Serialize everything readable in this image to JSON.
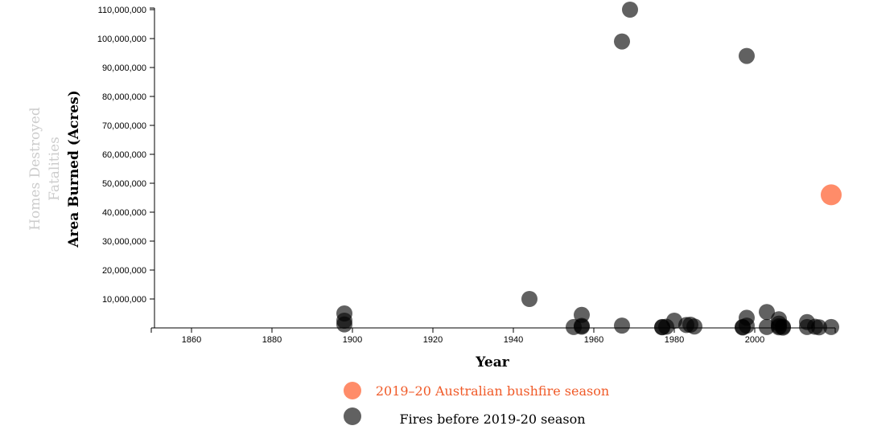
{
  "chart_data": {
    "type": "scatter",
    "xlabel": "Year",
    "ylabel": "Area Burned (Acres)",
    "alt_ylabels": [
      "Fatalities",
      "Homes Destroyed"
    ],
    "xlim": [
      1850,
      2020
    ],
    "ylim": [
      0,
      110000000
    ],
    "x_ticks": [
      1860,
      1880,
      1900,
      1920,
      1940,
      1960,
      1980,
      2000
    ],
    "y_ticks": [
      10000000,
      20000000,
      30000000,
      40000000,
      50000000,
      60000000,
      70000000,
      80000000,
      90000000,
      100000000,
      110000000
    ],
    "y_tick_labels": [
      "10,000,000",
      "20,000,000",
      "30,000,000",
      "40,000,000",
      "50,000,000",
      "60,000,000",
      "70,000,000",
      "80,000,000",
      "90,000,000",
      "100,000,000",
      "110,000,000"
    ],
    "series": [
      {
        "name": "Fires before 2019-20 season",
        "color": "#000000",
        "legend_text_color": "#000000",
        "points": [
          {
            "x": 1898,
            "y": 5000000
          },
          {
            "x": 1898,
            "y": 2500000
          },
          {
            "x": 1898,
            "y": 1200000
          },
          {
            "x": 1944,
            "y": 10000000
          },
          {
            "x": 1955,
            "y": 300000
          },
          {
            "x": 1957,
            "y": 4500000
          },
          {
            "x": 1957,
            "y": 700000
          },
          {
            "x": 1957,
            "y": 400000
          },
          {
            "x": 1967,
            "y": 99000000
          },
          {
            "x": 1967,
            "y": 800000
          },
          {
            "x": 1969,
            "y": 110000000
          },
          {
            "x": 1977,
            "y": 300000
          },
          {
            "x": 1977,
            "y": 200000
          },
          {
            "x": 1978,
            "y": 400000
          },
          {
            "x": 1980,
            "y": 2500000
          },
          {
            "x": 1983,
            "y": 1000000
          },
          {
            "x": 1984,
            "y": 1100000
          },
          {
            "x": 1985,
            "y": 500000
          },
          {
            "x": 1997,
            "y": 300000
          },
          {
            "x": 1997,
            "y": 150000
          },
          {
            "x": 1998,
            "y": 94000000
          },
          {
            "x": 1998,
            "y": 3500000
          },
          {
            "x": 1998,
            "y": 800000
          },
          {
            "x": 2003,
            "y": 5500000
          },
          {
            "x": 2003,
            "y": 300000
          },
          {
            "x": 2006,
            "y": 3000000
          },
          {
            "x": 2006,
            "y": 1500000
          },
          {
            "x": 2006,
            "y": 600000
          },
          {
            "x": 2006,
            "y": 200000
          },
          {
            "x": 2007,
            "y": 400000
          },
          {
            "x": 2007,
            "y": 100000
          },
          {
            "x": 2013,
            "y": 2000000
          },
          {
            "x": 2013,
            "y": 300000
          },
          {
            "x": 2015,
            "y": 400000
          },
          {
            "x": 2016,
            "y": 200000
          },
          {
            "x": 2019,
            "y": 300000
          }
        ]
      },
      {
        "name": "2019–20 Australian bushfire season",
        "color": "#ff8c69",
        "legend_text_color": "#f05a28",
        "points": [
          {
            "x": 2019,
            "y": 46000000
          }
        ]
      }
    ],
    "legend": "bottom-center",
    "grid": false
  }
}
